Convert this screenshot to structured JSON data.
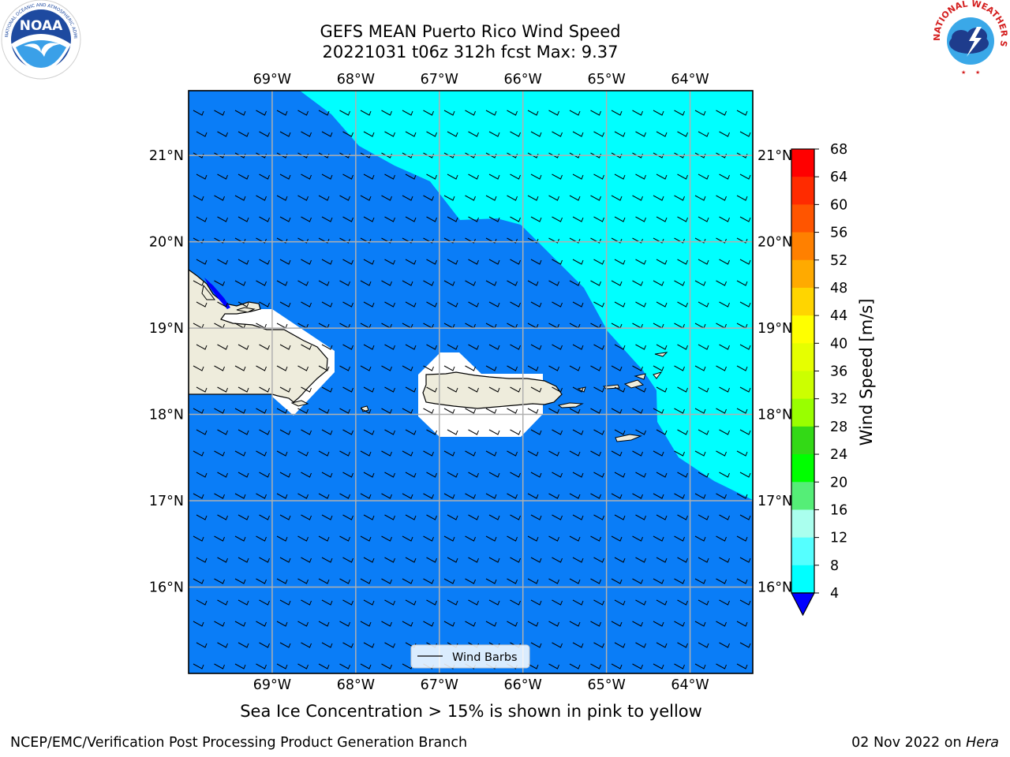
{
  "header": {
    "title_line1": "GEFS MEAN Puerto Rico Wind Speed",
    "title_line2": "20221031 t06z 312h fcst   Max: 9.37"
  },
  "logos": {
    "left": {
      "name": "NOAA",
      "text": "NOAA",
      "ring_text": "NATIONAL OCEANIC AND ATMOSPHERIC ADMINISTRATION · U.S. DEPARTMENT OF COMMERCE"
    },
    "right": {
      "name": "National Weather Service",
      "ring_text": "NATIONAL WEATHER SERVICE"
    }
  },
  "map": {
    "lon_labels": [
      "69°W",
      "68°W",
      "67°W",
      "66°W",
      "65°W",
      "64°W"
    ],
    "lat_labels": [
      "21°N",
      "20°N",
      "19°N",
      "18°N",
      "17°N",
      "16°N"
    ],
    "lon_values": [
      -69,
      -68,
      -67,
      -66,
      -65,
      -64
    ],
    "lat_values": [
      21,
      20,
      19,
      18,
      17,
      16
    ],
    "extent": {
      "lon_min": -70.0,
      "lon_max": -63.25,
      "lat_min": 15.0,
      "lat_max": 21.75
    },
    "legend_label": "Wind Barbs",
    "colors": {
      "land": "#eeecdc",
      "low_wind": "#0a7df7",
      "mid_wind": "#00ffff",
      "grid": "#b0b0b0"
    }
  },
  "colorbar": {
    "label": "Wind Speed [m/s]",
    "ticks": [
      "68",
      "64",
      "60",
      "56",
      "52",
      "48",
      "44",
      "40",
      "36",
      "32",
      "28",
      "24",
      "20",
      "16",
      "12",
      "8",
      "4"
    ],
    "colors_top_to_bottom": [
      "#ff0000",
      "#ff2b00",
      "#ff5500",
      "#ff8000",
      "#ffaa00",
      "#ffd500",
      "#ffff00",
      "#e6ff00",
      "#ccff00",
      "#99ff00",
      "#33d916",
      "#00ff00",
      "#55ee77",
      "#aaffee",
      "#55ffff",
      "#00ffff",
      "#0a7df7"
    ],
    "under_color": "#0000ff"
  },
  "notes": {
    "sea_ice": "Sea Ice Concentration > 15% is shown in pink to yellow",
    "footer_left": "NCEP/EMC/Verification Post Processing Product Generation Branch",
    "footer_date": "02 Nov 2022 on",
    "footer_machine": "Hera"
  }
}
